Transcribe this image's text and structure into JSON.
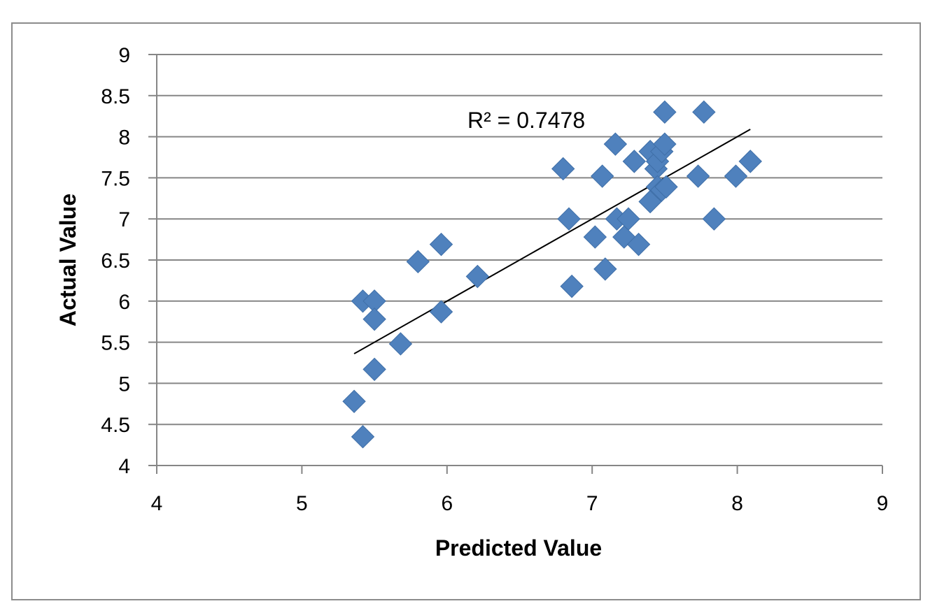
{
  "chart_data": {
    "type": "scatter",
    "title": "",
    "xlabel": "Predicted Value",
    "ylabel": "Actual Value",
    "xlim": [
      4,
      9
    ],
    "ylim": [
      4,
      9
    ],
    "x_ticks": [
      "4",
      "5",
      "6",
      "7",
      "8",
      "9"
    ],
    "y_ticks": [
      "4",
      "4.5",
      "5",
      "5.5",
      "6",
      "6.5",
      "7",
      "7.5",
      "8",
      "8.5",
      "9"
    ],
    "grid": "horizontal",
    "legend": "none",
    "marker": "diamond",
    "marker_color": "#4f81bd",
    "series": [
      {
        "points": [
          [
            5.36,
            4.78
          ],
          [
            5.42,
            4.35
          ],
          [
            5.42,
            6.0
          ],
          [
            5.5,
            6.0
          ],
          [
            5.5,
            5.78
          ],
          [
            5.5,
            5.17
          ],
          [
            5.68,
            5.48
          ],
          [
            5.8,
            6.48
          ],
          [
            5.96,
            5.87
          ],
          [
            5.96,
            6.69
          ],
          [
            6.21,
            6.3
          ],
          [
            6.8,
            7.61
          ],
          [
            6.84,
            7.0
          ],
          [
            6.86,
            6.18
          ],
          [
            7.02,
            6.78
          ],
          [
            7.07,
            7.52
          ],
          [
            7.09,
            6.39
          ],
          [
            7.16,
            7.91
          ],
          [
            7.17,
            7.0
          ],
          [
            7.22,
            6.78
          ],
          [
            7.25,
            7.0
          ],
          [
            7.29,
            7.7
          ],
          [
            7.32,
            6.69
          ],
          [
            7.4,
            7.21
          ],
          [
            7.4,
            7.82
          ],
          [
            7.44,
            7.61
          ],
          [
            7.45,
            7.7
          ],
          [
            7.45,
            7.39
          ],
          [
            7.48,
            7.82
          ],
          [
            7.48,
            7.35
          ],
          [
            7.5,
            7.91
          ],
          [
            7.5,
            8.3
          ],
          [
            7.51,
            7.39
          ],
          [
            7.73,
            7.52
          ],
          [
            7.77,
            8.3
          ],
          [
            7.84,
            7.0
          ],
          [
            7.99,
            7.52
          ],
          [
            8.09,
            7.7
          ]
        ]
      }
    ],
    "trendline": {
      "type": "linear",
      "x": [
        5.36,
        8.09
      ],
      "y": [
        5.36,
        8.09
      ],
      "color": "#000000"
    },
    "annotation": "R² = 0.7478"
  }
}
